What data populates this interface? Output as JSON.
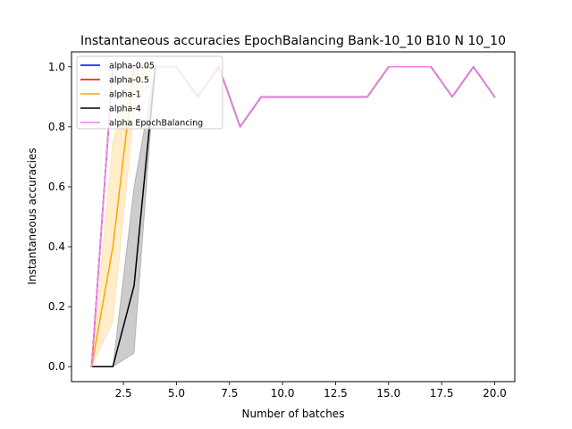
{
  "chart_data": {
    "type": "line",
    "title": "Instantaneous accuracies EpochBalancing Bank-10_10 B10 N 10_10",
    "xlabel": "Number of batches",
    "ylabel": "Instantaneous accuracies",
    "xlim": [
      0.05,
      20.95
    ],
    "ylim": [
      -0.05,
      1.05
    ],
    "xticks": [
      2.5,
      5.0,
      7.5,
      10.0,
      12.5,
      15.0,
      17.5,
      20.0
    ],
    "xtick_labels": [
      "2.5",
      "5.0",
      "7.5",
      "10.0",
      "12.5",
      "15.0",
      "17.5",
      "20.0"
    ],
    "yticks": [
      0.0,
      0.2,
      0.4,
      0.6,
      0.8,
      1.0
    ],
    "ytick_labels": [
      "0.0",
      "0.2",
      "0.4",
      "0.6",
      "0.8",
      "1.0"
    ],
    "grid": false,
    "legend_position": "upper-left",
    "x": [
      1,
      2,
      3,
      4,
      5,
      6,
      7,
      8,
      9,
      10,
      11,
      12,
      13,
      14,
      15,
      16,
      17,
      18,
      19,
      20
    ],
    "series": [
      {
        "name": "alpha-0.05",
        "color": "#0000ff",
        "values": [
          0.0,
          1.0,
          1.0,
          1.0,
          1.0,
          0.9,
          1.0,
          0.8,
          0.9,
          0.9,
          0.9,
          0.9,
          0.9,
          0.9,
          1.0,
          1.0,
          1.0,
          0.9,
          1.0,
          0.9
        ]
      },
      {
        "name": "alpha-0.5",
        "color": "#ff0000",
        "values": [
          0.0,
          1.0,
          1.0,
          1.0,
          1.0,
          0.9,
          1.0,
          0.8,
          0.9,
          0.9,
          0.9,
          0.9,
          0.9,
          0.9,
          1.0,
          1.0,
          1.0,
          0.9,
          1.0,
          0.9
        ]
      },
      {
        "name": "alpha-1",
        "color": "#ffa500",
        "values": [
          0.0,
          0.4,
          1.0,
          1.0,
          1.0,
          0.9,
          1.0,
          0.8,
          0.9,
          0.9,
          0.9,
          0.9,
          0.9,
          0.9,
          1.0,
          1.0,
          1.0,
          0.9,
          1.0,
          0.9
        ],
        "band_lower": [
          0.0,
          0.15,
          0.85,
          1.0,
          1.0,
          0.9,
          1.0,
          0.8,
          0.9,
          0.9,
          0.9,
          0.9,
          0.9,
          0.9,
          1.0,
          1.0,
          1.0,
          0.9,
          1.0,
          0.9
        ],
        "band_upper": [
          0.0,
          0.75,
          1.0,
          1.0,
          1.0,
          0.9,
          1.0,
          0.8,
          0.9,
          0.9,
          0.9,
          0.9,
          0.9,
          0.9,
          1.0,
          1.0,
          1.0,
          0.9,
          1.0,
          0.9
        ]
      },
      {
        "name": "alpha-4",
        "color": "#000000",
        "values": [
          0.0,
          0.0,
          0.27,
          1.0,
          1.0,
          0.9,
          1.0,
          0.8,
          0.9,
          0.9,
          0.9,
          0.9,
          0.9,
          0.9,
          1.0,
          1.0,
          1.0,
          0.9,
          1.0,
          0.9
        ],
        "band_lower": [
          0.0,
          0.0,
          0.045,
          1.0,
          1.0,
          0.9,
          1.0,
          0.8,
          0.9,
          0.9,
          0.9,
          0.9,
          0.9,
          0.9,
          1.0,
          1.0,
          1.0,
          0.9,
          1.0,
          0.9
        ],
        "band_upper": [
          0.0,
          0.0,
          0.6,
          1.0,
          1.0,
          0.9,
          1.0,
          0.8,
          0.9,
          0.9,
          0.9,
          0.9,
          0.9,
          0.9,
          1.0,
          1.0,
          1.0,
          0.9,
          1.0,
          0.9
        ]
      },
      {
        "name": "alpha EpochBalancing",
        "color": "#ee82ee",
        "values": [
          0.0,
          1.0,
          1.0,
          1.0,
          1.0,
          0.9,
          1.0,
          0.8,
          0.9,
          0.9,
          0.9,
          0.9,
          0.9,
          0.9,
          1.0,
          1.0,
          1.0,
          0.9,
          1.0,
          0.9
        ]
      }
    ]
  }
}
